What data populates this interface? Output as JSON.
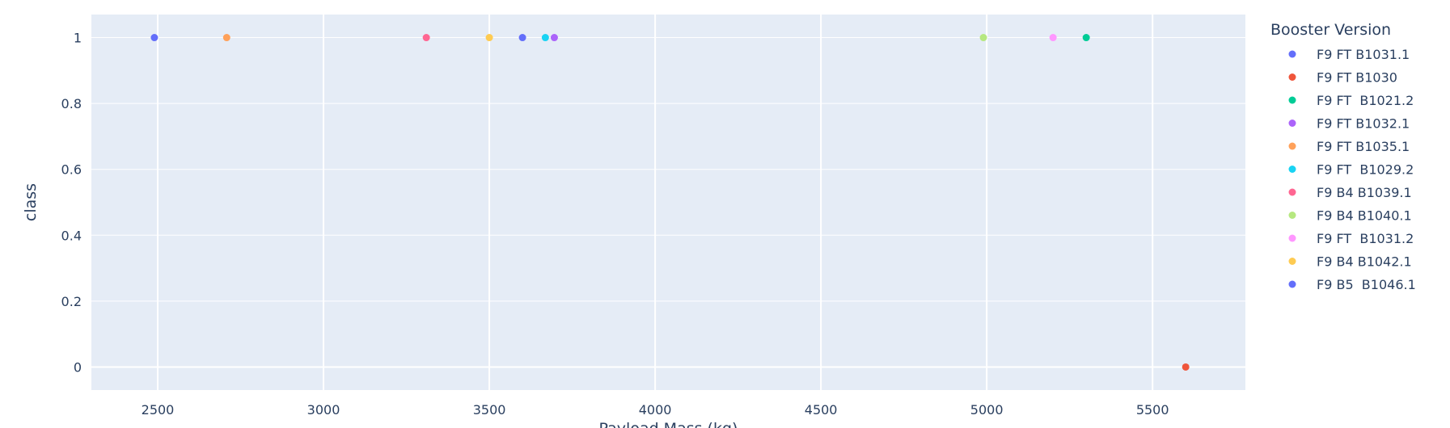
{
  "chart_data": {
    "type": "scatter",
    "xlabel": "Payload Mass (kg)",
    "ylabel": "class",
    "xlim": [
      2300,
      5780
    ],
    "ylim": [
      -0.07,
      1.07
    ],
    "xticks": [
      2500,
      3000,
      3500,
      4000,
      4500,
      5000,
      5500
    ],
    "xtick_labels": [
      "2500",
      "3000",
      "3500",
      "4000",
      "4500",
      "5000",
      "5500"
    ],
    "yticks": [
      0,
      0.2,
      0.4,
      0.6,
      0.8,
      1
    ],
    "ytick_labels": [
      "0",
      "0.2",
      "0.4",
      "0.6",
      "0.8",
      "1"
    ],
    "grid": true,
    "legend_title": "Booster Version",
    "legend_position": "right",
    "series": [
      {
        "name": "F9 FT B1031.1",
        "color": "#636efa",
        "points": [
          {
            "x": 2490,
            "y": 1
          }
        ]
      },
      {
        "name": "F9 FT B1030",
        "color": "#ef553b",
        "points": [
          {
            "x": 5600,
            "y": 0
          }
        ]
      },
      {
        "name": "F9 FT  B1021.2",
        "color": "#00cc96",
        "points": [
          {
            "x": 5300,
            "y": 1
          }
        ]
      },
      {
        "name": "F9 FT B1032.1",
        "color": "#ab63fa",
        "points": [
          {
            "x": 3696,
            "y": 1
          }
        ]
      },
      {
        "name": "F9 FT B1035.1",
        "color": "#ffa15a",
        "points": [
          {
            "x": 2708,
            "y": 1
          }
        ]
      },
      {
        "name": "F9 FT  B1029.2",
        "color": "#19d3f3",
        "points": [
          {
            "x": 3669,
            "y": 1
          }
        ]
      },
      {
        "name": "F9 B4 B1039.1",
        "color": "#ff6692",
        "points": [
          {
            "x": 3310,
            "y": 1
          }
        ]
      },
      {
        "name": "F9 B4 B1040.1",
        "color": "#b6e880",
        "points": [
          {
            "x": 4990,
            "y": 1
          }
        ]
      },
      {
        "name": "F9 FT  B1031.2",
        "color": "#ff97ff",
        "points": [
          {
            "x": 5200,
            "y": 1
          }
        ]
      },
      {
        "name": "F9 B4 B1042.1",
        "color": "#fecb52",
        "points": [
          {
            "x": 3500,
            "y": 1
          }
        ]
      },
      {
        "name": "F9 B5  B1046.1",
        "color": "#636efa",
        "points": [
          {
            "x": 3600,
            "y": 1
          }
        ]
      }
    ]
  }
}
